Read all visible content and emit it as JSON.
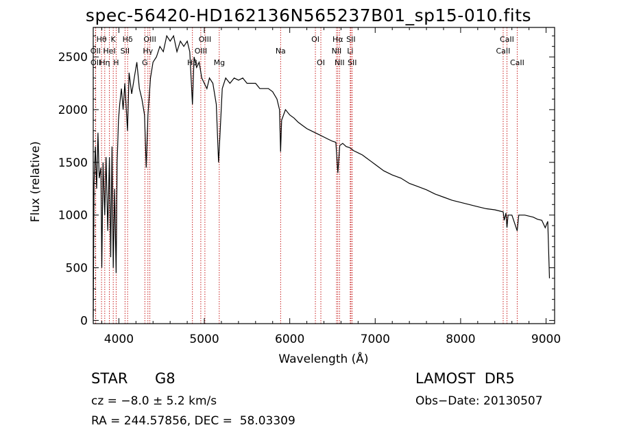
{
  "title": "spec-56420-HD162136N565237B01_sp15-010.fits",
  "info": {
    "class": "STAR",
    "subclass": "G8",
    "survey": "LAMOST  DR5",
    "cz": "cz = −8.0 ± 5.2 km/s",
    "obs_date": "Obs−Date: 20130507",
    "radec": "RA = 244.57856, DEC =  58.03309"
  },
  "colors": {
    "spectrum": "#000000",
    "line_markers": "#c00000",
    "axes": "#000000"
  },
  "chart_data": {
    "type": "line",
    "title": "spec-56420-HD162136N565237B01_sp15-010.fits",
    "xlabel": "Wavelength (Å)",
    "ylabel": "Flux (relative)",
    "xlim": [
      3700,
      9100
    ],
    "ylim": [
      -30,
      2780
    ],
    "xticks": [
      4000,
      5000,
      6000,
      7000,
      8000,
      9000
    ],
    "yticks": [
      0,
      500,
      1000,
      1500,
      2000,
      2500
    ],
    "grid": false,
    "series": [
      {
        "points": [
          [
            3700,
            30
          ],
          [
            3710,
            1300
          ],
          [
            3725,
            1650
          ],
          [
            3740,
            1250
          ],
          [
            3755,
            1780
          ],
          [
            3770,
            1350
          ],
          [
            3790,
            1450
          ],
          [
            3800,
            500
          ],
          [
            3815,
            1500
          ],
          [
            3835,
            1000
          ],
          [
            3850,
            1550
          ],
          [
            3870,
            850
          ],
          [
            3889,
            1550
          ],
          [
            3905,
            600
          ],
          [
            3920,
            1650
          ],
          [
            3934,
            500
          ],
          [
            3950,
            1250
          ],
          [
            3968,
            450
          ],
          [
            3980,
            1500
          ],
          [
            3995,
            1900
          ],
          [
            4010,
            2050
          ],
          [
            4030,
            2200
          ],
          [
            4050,
            2000
          ],
          [
            4070,
            2250
          ],
          [
            4101,
            1800
          ],
          [
            4120,
            2350
          ],
          [
            4150,
            2150
          ],
          [
            4180,
            2300
          ],
          [
            4210,
            2450
          ],
          [
            4240,
            2200
          ],
          [
            4270,
            2100
          ],
          [
            4300,
            1950
          ],
          [
            4320,
            1450
          ],
          [
            4340,
            1950
          ],
          [
            4370,
            2300
          ],
          [
            4400,
            2450
          ],
          [
            4440,
            2500
          ],
          [
            4480,
            2600
          ],
          [
            4520,
            2550
          ],
          [
            4560,
            2700
          ],
          [
            4600,
            2650
          ],
          [
            4640,
            2700
          ],
          [
            4680,
            2550
          ],
          [
            4720,
            2650
          ],
          [
            4760,
            2600
          ],
          [
            4800,
            2650
          ],
          [
            4830,
            2550
          ],
          [
            4861,
            2050
          ],
          [
            4880,
            2500
          ],
          [
            4910,
            2400
          ],
          [
            4940,
            2450
          ],
          [
            4970,
            2300
          ],
          [
            5000,
            2250
          ],
          [
            5030,
            2200
          ],
          [
            5060,
            2300
          ],
          [
            5100,
            2250
          ],
          [
            5140,
            2050
          ],
          [
            5167,
            1500
          ],
          [
            5183,
            1750
          ],
          [
            5210,
            2200
          ],
          [
            5250,
            2300
          ],
          [
            5300,
            2250
          ],
          [
            5350,
            2300
          ],
          [
            5400,
            2280
          ],
          [
            5450,
            2300
          ],
          [
            5500,
            2250
          ],
          [
            5550,
            2250
          ],
          [
            5600,
            2250
          ],
          [
            5650,
            2200
          ],
          [
            5700,
            2200
          ],
          [
            5750,
            2200
          ],
          [
            5800,
            2170
          ],
          [
            5850,
            2100
          ],
          [
            5880,
            2000
          ],
          [
            5893,
            1600
          ],
          [
            5905,
            1900
          ],
          [
            5950,
            2000
          ],
          [
            6000,
            1950
          ],
          [
            6050,
            1920
          ],
          [
            6100,
            1880
          ],
          [
            6150,
            1850
          ],
          [
            6200,
            1820
          ],
          [
            6250,
            1800
          ],
          [
            6300,
            1780
          ],
          [
            6350,
            1760
          ],
          [
            6400,
            1740
          ],
          [
            6450,
            1720
          ],
          [
            6500,
            1700
          ],
          [
            6540,
            1690
          ],
          [
            6563,
            1400
          ],
          [
            6585,
            1660
          ],
          [
            6620,
            1680
          ],
          [
            6660,
            1650
          ],
          [
            6700,
            1640
          ],
          [
            6750,
            1610
          ],
          [
            6800,
            1590
          ],
          [
            6850,
            1570
          ],
          [
            6900,
            1540
          ],
          [
            6950,
            1510
          ],
          [
            7000,
            1480
          ],
          [
            7100,
            1420
          ],
          [
            7200,
            1380
          ],
          [
            7300,
            1350
          ],
          [
            7400,
            1300
          ],
          [
            7500,
            1270
          ],
          [
            7600,
            1240
          ],
          [
            7700,
            1200
          ],
          [
            7800,
            1170
          ],
          [
            7900,
            1140
          ],
          [
            8000,
            1120
          ],
          [
            8100,
            1100
          ],
          [
            8200,
            1080
          ],
          [
            8300,
            1060
          ],
          [
            8400,
            1050
          ],
          [
            8498,
            1030
          ],
          [
            8510,
            950
          ],
          [
            8530,
            1020
          ],
          [
            8542,
            880
          ],
          [
            8555,
            1000
          ],
          [
            8600,
            1000
          ],
          [
            8662,
            850
          ],
          [
            8680,
            1000
          ],
          [
            8750,
            1000
          ],
          [
            8800,
            990
          ],
          [
            8850,
            980
          ],
          [
            8900,
            960
          ],
          [
            8950,
            950
          ],
          [
            8990,
            880
          ],
          [
            9020,
            940
          ],
          [
            9040,
            400
          ]
        ]
      }
    ],
    "line_marks": [
      {
        "wavelength": 3797,
        "label": "Hθ",
        "row": 0
      },
      {
        "wavelength": 3835,
        "label": "Hη",
        "row": 2
      },
      {
        "wavelength": 3727,
        "label": "OII",
        "row": 1
      },
      {
        "wavelength": 3729,
        "label": "OII",
        "row": 2
      },
      {
        "wavelength": 3889,
        "label": "HeI",
        "row": 1
      },
      {
        "wavelength": 3934,
        "label": "K",
        "row": 0
      },
      {
        "wavelength": 3968,
        "label": "H",
        "row": 2
      },
      {
        "wavelength": 4072,
        "label": "SII",
        "row": 1
      },
      {
        "wavelength": 4102,
        "label": "Hδ",
        "row": 0
      },
      {
        "wavelength": 4304,
        "label": "G",
        "row": 2
      },
      {
        "wavelength": 4340,
        "label": "Hγ",
        "row": 1
      },
      {
        "wavelength": 4363,
        "label": "OIII",
        "row": 0
      },
      {
        "wavelength": 4861,
        "label": "Hβ",
        "row": 2
      },
      {
        "wavelength": 4959,
        "label": "OIII",
        "row": 1
      },
      {
        "wavelength": 5007,
        "label": "OIII",
        "row": 0
      },
      {
        "wavelength": 5175,
        "label": "Mg",
        "row": 2
      },
      {
        "wavelength": 5893,
        "label": "Na",
        "row": 1
      },
      {
        "wavelength": 6300,
        "label": "OI",
        "row": 0
      },
      {
        "wavelength": 6364,
        "label": "OI",
        "row": 2
      },
      {
        "wavelength": 6548,
        "label": "NII",
        "row": 1
      },
      {
        "wavelength": 6563,
        "label": "Hα",
        "row": 0
      },
      {
        "wavelength": 6583,
        "label": "NII",
        "row": 2
      },
      {
        "wavelength": 6708,
        "label": "Li",
        "row": 1
      },
      {
        "wavelength": 6716,
        "label": "SII",
        "row": 0
      },
      {
        "wavelength": 6731,
        "label": "SII",
        "row": 2
      },
      {
        "wavelength": 8498,
        "label": "CaII",
        "row": 1
      },
      {
        "wavelength": 8542,
        "label": "CaII",
        "row": 0
      },
      {
        "wavelength": 8662,
        "label": "CaII",
        "row": 2
      }
    ]
  }
}
